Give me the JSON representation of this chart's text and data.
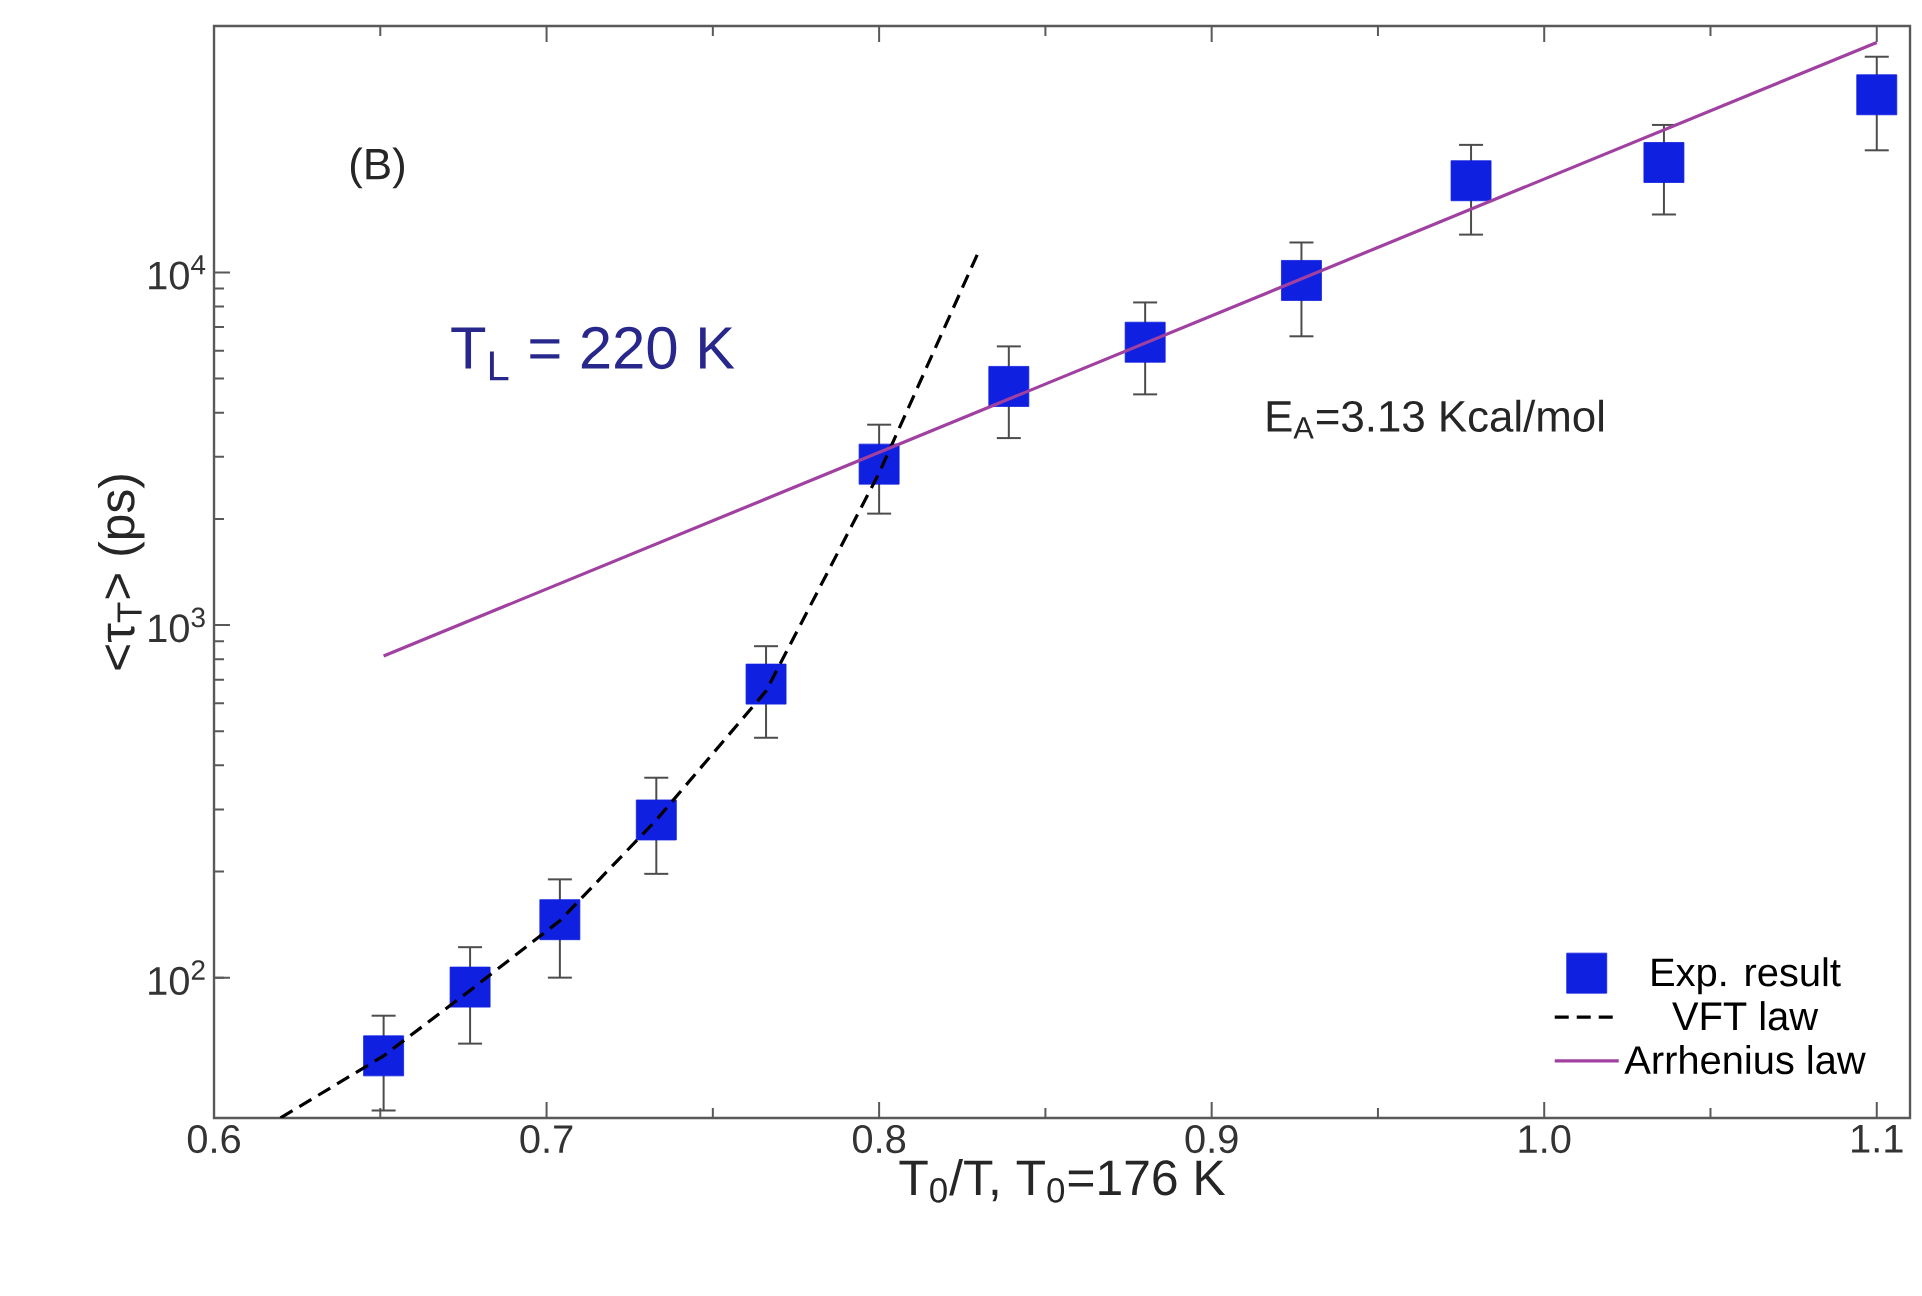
{
  "chart_data": {
    "type": "scatter",
    "xlabel": "T$_{0}$/T, T$_{0}$=176 K",
    "ylabel": "<τ$_{T}$> (ps)",
    "annotations": [
      "(B)",
      "T$_{L}$ = 220 K",
      "E$_{A}$=3.13 Kcal/mol"
    ],
    "log": "y",
    "xlim": [
      0.6,
      1.11
    ],
    "ylim": [
      40,
      50000
    ],
    "xticks": [
      0.6,
      0.7,
      0.8,
      0.9,
      {
        "value": 1,
        "label": "1.0"
      },
      1.1
    ],
    "yticks": [
      {
        "value": 100,
        "label": "10$^{2}$"
      },
      {
        "value": 1000,
        "label": "10$^{3}$"
      },
      {
        "value": 10000,
        "label": "10$^{4}$"
      }
    ],
    "legend": "bottom right",
    "grid": false,
    "series": [
      {
        "name": "Exp. result",
        "marker": "square",
        "color": "#1020e0",
        "x": [
          0.651,
          0.677,
          0.704,
          0.733,
          0.766,
          0.8,
          0.839,
          0.88,
          0.927,
          0.978,
          1.036,
          1.1
        ],
        "values": [
          60,
          94,
          146,
          280,
          680,
          2860,
          4750,
          6340,
          9490,
          18200,
          20500,
          31900
        ],
        "errors": [
          [
            42,
            78
          ],
          [
            65,
            122
          ],
          [
            100,
            190
          ],
          [
            197,
            369
          ],
          [
            479,
            871
          ],
          [
            2070,
            3700
          ],
          [
            3390,
            6170
          ],
          [
            4510,
            8220
          ],
          [
            6590,
            12160
          ],
          [
            12800,
            23000
          ],
          [
            14600,
            26200
          ],
          [
            22200,
            40900
          ]
        ]
      },
      {
        "name": "VFT law",
        "type": "line",
        "line_style": "dashed",
        "marker": "none",
        "color": "#000000",
        "x": [
          0.62,
          0.651,
          0.677,
          0.704,
          0.733,
          0.766,
          0.8,
          0.83
        ],
        "values": [
          40,
          60,
          92,
          145,
          280,
          650,
          2700,
          11500
        ]
      },
      {
        "name": "Arrhenius law",
        "type": "line",
        "line_style": "solid",
        "marker": "none",
        "color": "#a040a0",
        "x": [
          0.651,
          1.1
        ],
        "values": [
          817,
          44900
        ]
      }
    ]
  }
}
